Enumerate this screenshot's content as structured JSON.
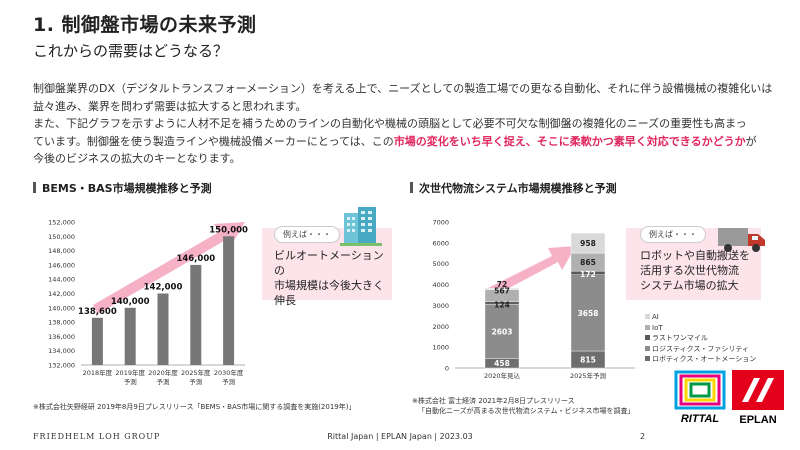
{
  "header": {
    "title": "1. 制御盤市場の未来予測",
    "subtitle": "これからの需要はどうなる？"
  },
  "body": {
    "para1": "制御盤業界のDX（デジタルトランスフォーメーション）を考える上で、ニーズとしての製造工場での更なる自動化、それに伴う設備機械の複雑化いは",
    "para1_line2": "益々進み、業界を問わず需要は拡大すると思われます。",
    "para2_a": "また、下記グラフを示すように人材不足を補うためのラインの自動化や機械の頭脳として必要不可欠な制御盤の複雑化のニーズの重要性も高まっ",
    "para2_b": "ています。制御盤を使う製造ラインや機械設備メーカーにとっては、この",
    "para2_hl": "市場の変化をいち早く捉え、そこに柔軟かつ素早く対応できるかどうか",
    "para2_c": "が",
    "para2_d": "今後のビジネスの拡大のキーとなります。"
  },
  "left_section": {
    "heading": "BEMS・BAS市場規模推移と予測",
    "callout_tag": "例えば・・・",
    "callout_text_1": "ビルオートメーションの",
    "callout_text_2": "市場規模は今後大きく",
    "callout_text_3": "伸長",
    "source": "※株式会社矢野経研 2019年8月9日プレスリリース「BEMS・BAS市場に関する調査を実施(2019年)」",
    "bar_color": "#777777",
    "arrow_color": "#f4a3bc",
    "icon_name": "office-building-icon"
  },
  "right_section": {
    "heading": "次世代物流システム市場規模推移と予測",
    "callout_tag": "例えば・・・",
    "callout_text_1": "ロボットや自動搬送を",
    "callout_text_2": "活用する次世代物流",
    "callout_text_3": "システム市場の拡大",
    "source_1": "※株式会社 富士経済 2021年2月8日プレスリリース",
    "source_2": "「自動化ニーズが高まる次世代物流システム・ビジネス市場を調査」",
    "icon_name": "delivery-truck-icon"
  },
  "chart_data": [
    {
      "type": "bar",
      "categories": [
        "2018年度",
        "2019年度 予測",
        "2020年度 予測",
        "2025年度 予測",
        "2030年度 予測"
      ],
      "category_lines": [
        [
          "2018年度"
        ],
        [
          "2019年度",
          "予測"
        ],
        [
          "2020年度",
          "予測"
        ],
        [
          "2025年度",
          "予測"
        ],
        [
          "2030年度",
          "予測"
        ]
      ],
      "values": [
        138600,
        140000,
        142000,
        146000,
        150000
      ],
      "value_labels": [
        "138,600",
        "140,000",
        "142,000",
        "146,000",
        "150,000"
      ],
      "title": "",
      "xlabel": "",
      "ylabel": "",
      "ylim": [
        132000,
        152000
      ],
      "yticks": [
        132000,
        134000,
        136000,
        138000,
        140000,
        142000,
        144000,
        146000,
        148000,
        150000,
        152000
      ],
      "ytick_labels": [
        "132,000",
        "134,000",
        "136,000",
        "138,000",
        "140,000",
        "142,000",
        "144,000",
        "146,000",
        "148,000",
        "150,000",
        "152,000"
      ],
      "grid": false
    },
    {
      "type": "bar",
      "stacked": true,
      "categories": [
        "2020年見込",
        "2025年予測"
      ],
      "series": [
        {
          "name": "ロボティクス・オートメーション",
          "values": [
            458,
            815
          ],
          "color": "#6e6e6e"
        },
        {
          "name": "ロジスティクス・ファシリティ",
          "values": [
            2603,
            3658
          ],
          "color": "#8c8c8c"
        },
        {
          "name": "ラストワンマイル",
          "values": [
            124,
            172
          ],
          "color": "#5a5a5a"
        },
        {
          "name": "IoT",
          "values": [
            567,
            865
          ],
          "color": "#b0b0b0"
        },
        {
          "name": "AI",
          "values": [
            72,
            958
          ],
          "color": "#d9d9d9"
        }
      ],
      "ylim": [
        0,
        7000
      ],
      "yticks": [
        0,
        1000,
        2000,
        3000,
        4000,
        5000,
        6000,
        7000
      ],
      "ytick_labels": [
        "0",
        "1000",
        "2000",
        "3000",
        "4000",
        "5000",
        "6000",
        "7000"
      ],
      "legend_position": "right",
      "grid": false
    }
  ],
  "footer": {
    "company": "FRIEDHELM LOH GROUP",
    "center": "Rittal Japan | EPLAN Japan | 2023.03",
    "page": "2"
  },
  "logos": {
    "rittal": "RITTAL",
    "eplan": "EPLAN",
    "rittal_color": "#e2001a",
    "eplan_color": "#e2001a"
  }
}
